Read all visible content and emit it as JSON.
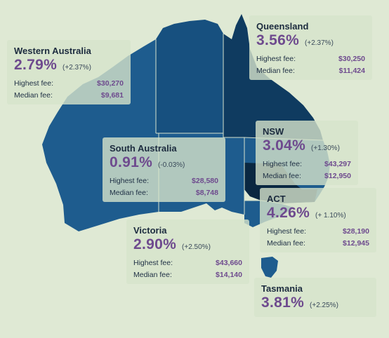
{
  "colors": {
    "background": "#dfe9d4",
    "western_australia": "#1e5c8e",
    "northern_territory": "#17507f",
    "south_australia": "#1e5c8e",
    "queensland": "#0f3b60",
    "nsw": "#1e5c8e",
    "victoria": "#1e5c8e",
    "act": "#0a2741",
    "tasmania": "#1e5c8e",
    "accent_purple": "#6e4a8e"
  },
  "states": {
    "wa": {
      "name": "Western Australia",
      "rate": "2.79%",
      "change": "(+2.37%)",
      "highest_label": "Highest fee:",
      "highest_value": "$30,270",
      "median_label": "Median fee:",
      "median_value": "$9,681"
    },
    "qld": {
      "name": "Queensland",
      "rate": "3.56%",
      "change": "(+2.37%)",
      "highest_label": "Highest fee:",
      "highest_value": "$30,250",
      "median_label": "Median fee:",
      "median_value": "$11,424"
    },
    "sa": {
      "name": "South Australia",
      "rate": "0.91%",
      "change": "(-0.03%)",
      "highest_label": "Highest fee:",
      "highest_value": "$28,580",
      "median_label": "Median fee:",
      "median_value": "$8,748"
    },
    "nsw": {
      "name": "NSW",
      "rate": "3.04%",
      "change": "(+1.30%)",
      "highest_label": "Highest fee:",
      "highest_value": "$43,297",
      "median_label": "Median fee:",
      "median_value": "$12,950"
    },
    "act": {
      "name": "ACT",
      "rate": "4.26%",
      "change": "(+ 1.10%)",
      "highest_label": "Highest fee:",
      "highest_value": "$28,190",
      "median_label": "Median fee:",
      "median_value": "$12,945"
    },
    "vic": {
      "name": "Victoria",
      "rate": "2.90%",
      "change": "(+2.50%)",
      "highest_label": "Highest fee:",
      "highest_value": "$43,660",
      "median_label": "Median fee:",
      "median_value": "$14,140"
    },
    "tas": {
      "name": "Tasmania",
      "rate": "3.81%",
      "change": "(+2.25%)"
    }
  }
}
